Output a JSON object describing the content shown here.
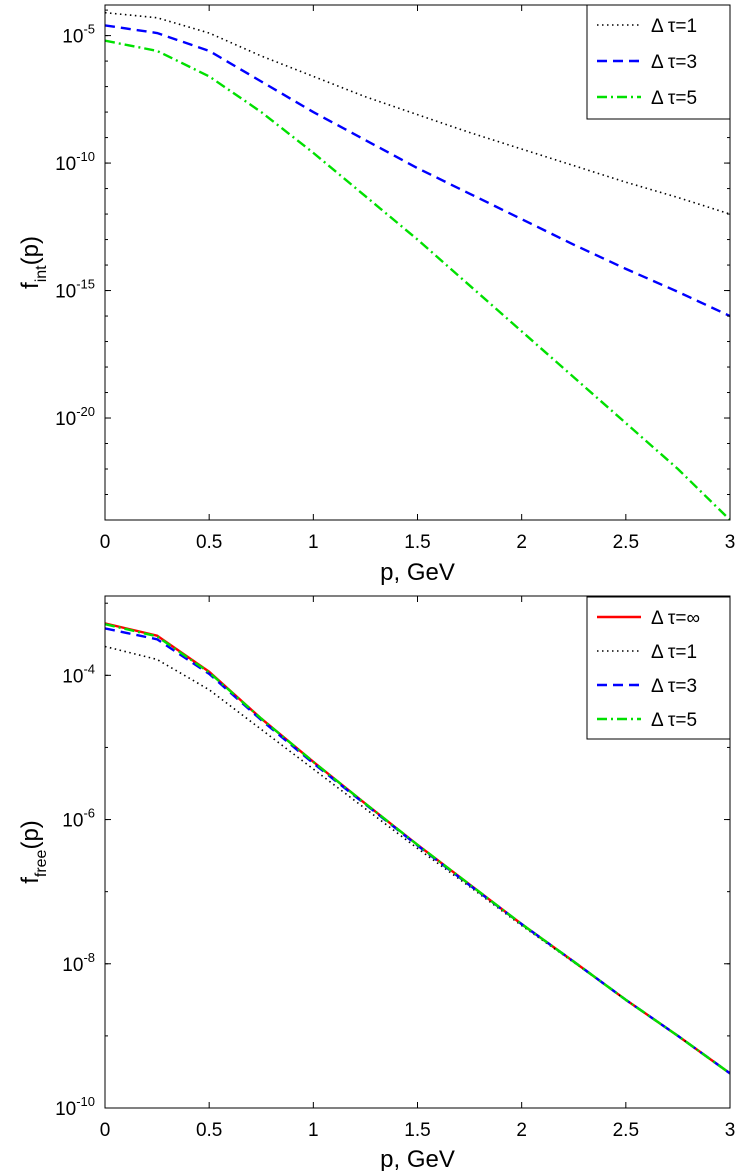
{
  "chart_data": [
    {
      "type": "line",
      "xlabel": "p, GeV",
      "ylabel_main": "f",
      "ylabel_sub": "int",
      "ylabel_tail": "(p)",
      "xlim": [
        0,
        3
      ],
      "ylog_range": [
        -24,
        -3.8
      ],
      "x_ticks": [
        "0",
        "0.5",
        "1",
        "1.5",
        "2",
        "2.5",
        "3"
      ],
      "y_ticks": [
        {
          "base": "10",
          "exp": "-5",
          "log": -5
        },
        {
          "base": "10",
          "exp": "-10",
          "log": -10
        },
        {
          "base": "10",
          "exp": "-15",
          "log": -15
        },
        {
          "base": "10",
          "exp": "-20",
          "log": -20
        }
      ],
      "legend_position": "top-right",
      "series": [
        {
          "name": "Δ τ=1",
          "label_prefix": "Δ",
          "label_sym": "τ=1",
          "color": "#000000",
          "style": "dotted",
          "x": [
            0,
            0.25,
            0.5,
            0.75,
            1,
            1.25,
            1.5,
            1.75,
            2,
            2.25,
            2.5,
            2.75,
            3
          ],
          "log10_y": [
            -4.1,
            -4.3,
            -4.9,
            -5.8,
            -6.6,
            -7.4,
            -8.1,
            -8.8,
            -9.45,
            -10.1,
            -10.75,
            -11.35,
            -12.0
          ]
        },
        {
          "name": "Δ τ=3",
          "label_prefix": "Δ",
          "label_sym": "τ=3",
          "color": "#0000ff",
          "style": "dashed",
          "x": [
            0,
            0.25,
            0.5,
            0.75,
            1,
            1.25,
            1.5,
            1.75,
            2,
            2.25,
            2.5,
            2.75,
            3
          ],
          "log10_y": [
            -4.6,
            -4.9,
            -5.6,
            -6.8,
            -8.0,
            -9.1,
            -10.2,
            -11.2,
            -12.2,
            -13.2,
            -14.15,
            -15.05,
            -16.0
          ]
        },
        {
          "name": "Δ τ=5",
          "label_prefix": "Δ",
          "label_sym": "τ=5",
          "color": "#00e000",
          "style": "dashdot",
          "x": [
            0,
            0.25,
            0.5,
            0.75,
            1,
            1.25,
            1.5,
            1.75,
            2,
            2.25,
            2.5,
            2.75,
            3
          ],
          "log10_y": [
            -5.2,
            -5.6,
            -6.6,
            -8.0,
            -9.6,
            -11.3,
            -13.0,
            -14.8,
            -16.6,
            -18.4,
            -20.2,
            -22.0,
            -24.0
          ]
        }
      ]
    },
    {
      "type": "line",
      "xlabel": "p, GeV",
      "ylabel_main": "f",
      "ylabel_sub": "free",
      "ylabel_tail": "(p)",
      "xlim": [
        0,
        3
      ],
      "ylog_range": [
        -10,
        -2.9
      ],
      "x_ticks": [
        "0",
        "0.5",
        "1",
        "1.5",
        "2",
        "2.5",
        "3"
      ],
      "y_ticks": [
        {
          "base": "10",
          "exp": "-4",
          "log": -4
        },
        {
          "base": "10",
          "exp": "-6",
          "log": -6
        },
        {
          "base": "10",
          "exp": "-8",
          "log": -8
        },
        {
          "base": "10",
          "exp": "-10",
          "log": -10
        }
      ],
      "legend_position": "top-right",
      "series": [
        {
          "name": "Δ τ=∞",
          "label_prefix": "Δ",
          "label_sym": "τ=∞",
          "color": "#ff0000",
          "style": "solid",
          "x": [
            0,
            0.25,
            0.5,
            0.75,
            1,
            1.25,
            1.5,
            1.75,
            2,
            2.25,
            2.5,
            2.75,
            3
          ],
          "log10_y": [
            -3.28,
            -3.45,
            -3.95,
            -4.6,
            -5.2,
            -5.78,
            -6.35,
            -6.9,
            -7.45,
            -7.97,
            -8.5,
            -9.0,
            -9.52
          ]
        },
        {
          "name": "Δ τ=1",
          "label_prefix": "Δ",
          "label_sym": "τ=1",
          "color": "#000000",
          "style": "dotted",
          "x": [
            0,
            0.25,
            0.5,
            0.75,
            1,
            1.25,
            1.5,
            1.75,
            2,
            2.25,
            2.5,
            2.75,
            3
          ],
          "log10_y": [
            -3.6,
            -3.78,
            -4.2,
            -4.75,
            -5.3,
            -5.85,
            -6.4,
            -6.93,
            -7.47,
            -7.98,
            -8.5,
            -9.0,
            -9.52
          ]
        },
        {
          "name": "Δ τ=3",
          "label_prefix": "Δ",
          "label_sym": "τ=3",
          "color": "#0000ff",
          "style": "dashed",
          "x": [
            0,
            0.25,
            0.5,
            0.75,
            1,
            1.25,
            1.5,
            1.75,
            2,
            2.25,
            2.5,
            2.75,
            3
          ],
          "log10_y": [
            -3.35,
            -3.5,
            -3.98,
            -4.62,
            -5.22,
            -5.79,
            -6.36,
            -6.91,
            -7.45,
            -7.97,
            -8.5,
            -9.0,
            -9.52
          ]
        },
        {
          "name": "Δ τ=5",
          "label_prefix": "Δ",
          "label_sym": "τ=5",
          "color": "#00e000",
          "style": "dashdot",
          "x": [
            0,
            0.25,
            0.5,
            0.75,
            1,
            1.25,
            1.5,
            1.75,
            2,
            2.25,
            2.5,
            2.75,
            3
          ],
          "log10_y": [
            -3.29,
            -3.46,
            -3.96,
            -4.6,
            -5.2,
            -5.78,
            -6.35,
            -6.9,
            -7.45,
            -7.97,
            -8.5,
            -9.0,
            -9.52
          ]
        }
      ]
    }
  ]
}
